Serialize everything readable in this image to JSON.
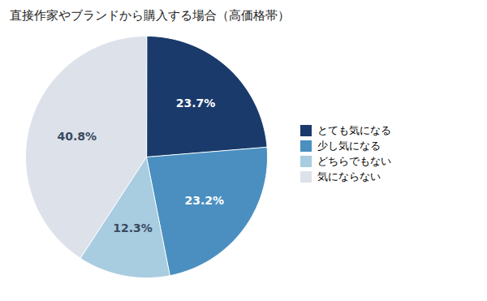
{
  "chart_data": {
    "type": "pie",
    "title": "直接作家やブランドから購入する場合（高価格帯）",
    "categories": [
      "とても気になる",
      "少し気になる",
      "どちらでもない",
      "気にならない"
    ],
    "values": [
      23.7,
      23.2,
      12.3,
      40.8
    ],
    "value_labels": [
      "23.7%",
      "23.2%",
      "12.3%",
      "40.8%"
    ],
    "colors": [
      "#1a3a6b",
      "#4a8fc0",
      "#a8cce0",
      "#dde2ea"
    ],
    "data_labels": true,
    "legend": "right"
  }
}
